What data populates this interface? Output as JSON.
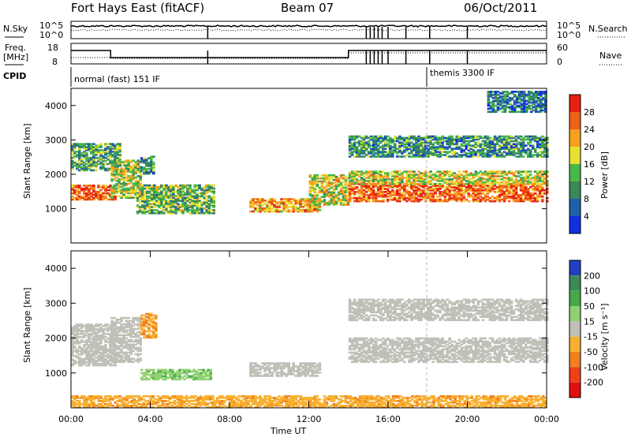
{
  "header": {
    "title": "Fort Hays East (fitACF)",
    "beam": "Beam 07",
    "date": "06/Oct/2011"
  },
  "status_panels": {
    "nsky_label": "N.Sky",
    "nsearch_label": "N.Search",
    "noise_ticks": [
      "10^5",
      "10^0"
    ],
    "freq_label_line1": "Freq.",
    "freq_label_line2": "[MHz]",
    "freq_ticks": [
      "18",
      "8"
    ],
    "nave_label": "Nave",
    "nave_ticks": [
      "60",
      "0"
    ],
    "cpid_label": "CPID",
    "cpid_modes": [
      "normal (fast) 151 IF",
      "themis 3300 IF"
    ]
  },
  "chart_data": [
    {
      "type": "heatmap",
      "panel": "power",
      "ylabel": "Slant Range [km]",
      "ylim": [
        0,
        4500
      ],
      "yticks": [
        1000,
        2000,
        3000,
        4000
      ],
      "colorbar": {
        "label": "Power [dB]",
        "ticks": [
          "4",
          "8",
          "12",
          "16",
          "20",
          "24",
          "28"
        ],
        "colors": [
          "#1030e0",
          "#2060a8",
          "#3a8a58",
          "#48b848",
          "#e8e030",
          "#f8a020",
          "#f06018",
          "#e82010"
        ]
      },
      "echo_regions": [
        {
          "t0": 0.0,
          "t1": 2.2,
          "r0": 1250,
          "r1": 1700,
          "level": 26
        },
        {
          "t0": 0.0,
          "t1": 2.5,
          "r0": 2100,
          "r1": 2900,
          "level": 12
        },
        {
          "t0": 2.0,
          "t1": 3.5,
          "r0": 1300,
          "r1": 2400,
          "level": 16
        },
        {
          "t0": 3.5,
          "t1": 4.2,
          "r0": 2000,
          "r1": 2500,
          "level": 10
        },
        {
          "t0": 3.3,
          "t1": 7.2,
          "r0": 850,
          "r1": 1700,
          "level": 14
        },
        {
          "t0": 9.0,
          "t1": 12.5,
          "r0": 900,
          "r1": 1300,
          "level": 22
        },
        {
          "t0": 12.0,
          "t1": 14.0,
          "r0": 1100,
          "r1": 2000,
          "level": 18
        },
        {
          "t0": 14.0,
          "t1": 24.0,
          "r0": 1200,
          "r1": 1700,
          "level": 26
        },
        {
          "t0": 14.0,
          "t1": 24.0,
          "r0": 1700,
          "r1": 2100,
          "level": 18
        },
        {
          "t0": 14.0,
          "t1": 24.0,
          "r0": 2500,
          "r1": 3100,
          "level": 10
        },
        {
          "t0": 21.0,
          "t1": 24.0,
          "r0": 3800,
          "r1": 4400,
          "level": 8
        }
      ]
    },
    {
      "type": "heatmap",
      "panel": "velocity",
      "ylabel": "Slant Range [km]",
      "ylim": [
        0,
        4500
      ],
      "yticks": [
        1000,
        2000,
        3000,
        4000
      ],
      "xlabel": "Time UT",
      "xticks": [
        "00:00",
        "04:00",
        "08:00",
        "12:00",
        "16:00",
        "20:00",
        "00:00"
      ],
      "colorbar": {
        "label": "Velocity [m s⁻¹]",
        "ticks": [
          "200",
          "100",
          "50",
          "15",
          "-15",
          "-50",
          "-100",
          "-200"
        ],
        "colors": [
          "#2040c0",
          "#3c8a58",
          "#46a848",
          "#90d070",
          "#c0c0b8",
          "#f8b030",
          "#f08020",
          "#f04018",
          "#e01010"
        ]
      },
      "echo_regions": [
        {
          "t0": 0.0,
          "t1": 2.2,
          "r0": 1200,
          "r1": 2400,
          "level": 0
        },
        {
          "t0": 2.0,
          "t1": 3.5,
          "r0": 1300,
          "r1": 2600,
          "level": 0
        },
        {
          "t0": 3.5,
          "t1": 4.3,
          "r0": 2000,
          "r1": 2700,
          "level": -50
        },
        {
          "t0": 3.5,
          "t1": 7.0,
          "r0": 800,
          "r1": 1100,
          "level": 40
        },
        {
          "t0": 9.0,
          "t1": 12.5,
          "r0": 900,
          "r1": 1300,
          "level": 0
        },
        {
          "t0": 14.0,
          "t1": 24.0,
          "r0": 1300,
          "r1": 2000,
          "level": 0
        },
        {
          "t0": 14.0,
          "t1": 24.0,
          "r0": 2500,
          "r1": 3100,
          "level": 0
        },
        {
          "t0": 0.0,
          "t1": 24.0,
          "r0": 0,
          "r1": 350,
          "level": -40
        }
      ]
    }
  ]
}
